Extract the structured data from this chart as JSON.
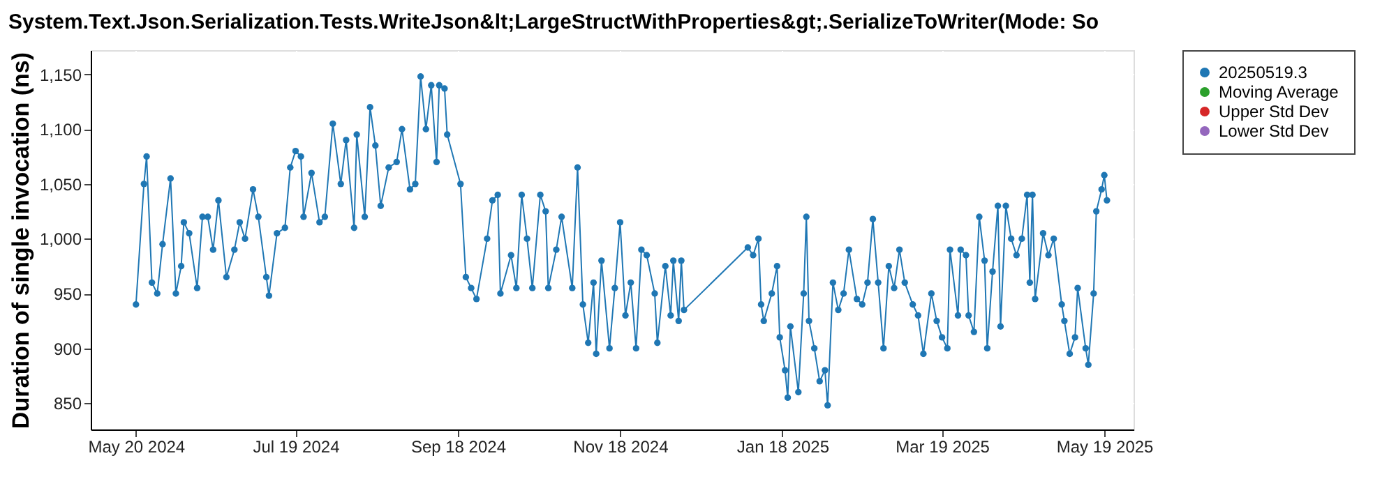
{
  "chart_data": {
    "type": "line",
    "title": "System.Text.Json.Serialization.Tests.WriteJson&lt;LargeStructWithProperties&gt;.SerializeToWriter(Mode: So",
    "ylabel": "Duration of single invocation (ns)",
    "xlim": [
      "2024-05-03",
      "2025-05-30"
    ],
    "xticks": [
      {
        "value": "2024-05-20",
        "label": "May 20 2024"
      },
      {
        "value": "2024-07-19",
        "label": "Jul 19 2024"
      },
      {
        "value": "2024-09-18",
        "label": "Sep 18 2024"
      },
      {
        "value": "2024-11-18",
        "label": "Nov 18 2024"
      },
      {
        "value": "2025-01-18",
        "label": "Jan 18 2025"
      },
      {
        "value": "2025-03-19",
        "label": "Mar 19 2025"
      },
      {
        "value": "2025-05-19",
        "label": "May 19 2025"
      }
    ],
    "ylim": [
      826,
      1172
    ],
    "yticks": [
      850,
      900,
      950,
      {
        "value": 1000,
        "label": "1,000"
      },
      {
        "value": 1050,
        "label": "1,050"
      },
      {
        "value": 1100,
        "label": "1,100"
      },
      {
        "value": 1150,
        "label": "1,150"
      }
    ],
    "grid": true,
    "legend": "right",
    "marker": "circle",
    "line_style": "solid",
    "x": [
      "2024-05-20",
      "2024-05-23",
      "2024-05-24",
      "2024-05-26",
      "2024-05-28",
      "2024-05-30",
      "2024-06-02",
      "2024-06-04",
      "2024-06-06",
      "2024-06-07",
      "2024-06-09",
      "2024-06-12",
      "2024-06-14",
      "2024-06-16",
      "2024-06-18",
      "2024-06-20",
      "2024-06-23",
      "2024-06-26",
      "2024-06-28",
      "2024-06-30",
      "2024-07-03",
      "2024-07-05",
      "2024-07-08",
      "2024-07-09",
      "2024-07-12",
      "2024-07-15",
      "2024-07-17",
      "2024-07-19",
      "2024-07-21",
      "2024-07-22",
      "2024-07-25",
      "2024-07-28",
      "2024-07-30",
      "2024-08-02",
      "2024-08-05",
      "2024-08-07",
      "2024-08-10",
      "2024-08-11",
      "2024-08-14",
      "2024-08-16",
      "2024-08-18",
      "2024-08-20",
      "2024-08-23",
      "2024-08-26",
      "2024-08-28",
      "2024-08-31",
      "2024-09-02",
      "2024-09-04",
      "2024-09-06",
      "2024-09-08",
      "2024-09-10",
      "2024-09-11",
      "2024-09-13",
      "2024-09-14",
      "2024-09-19",
      "2024-09-21",
      "2024-09-23",
      "2024-09-25",
      "2024-09-29",
      "2024-10-01",
      "2024-10-03",
      "2024-10-04",
      "2024-10-08",
      "2024-10-10",
      "2024-10-12",
      "2024-10-14",
      "2024-10-16",
      "2024-10-19",
      "2024-10-21",
      "2024-10-22",
      "2024-10-25",
      "2024-10-27",
      "2024-10-31",
      "2024-11-02",
      "2024-11-04",
      "2024-11-06",
      "2024-11-08",
      "2024-11-09",
      "2024-11-11",
      "2024-11-14",
      "2024-11-16",
      "2024-11-18",
      "2024-11-20",
      "2024-11-22",
      "2024-11-24",
      "2024-11-26",
      "2024-11-28",
      "2024-12-01",
      "2024-12-02",
      "2024-12-05",
      "2024-12-07",
      "2024-12-08",
      "2024-12-10",
      "2024-12-11",
      "2024-12-12",
      "2025-01-05",
      "2025-01-07",
      "2025-01-09",
      "2025-01-10",
      "2025-01-11",
      "2025-01-14",
      "2025-01-16",
      "2025-01-17",
      "2025-01-19",
      "2025-01-20",
      "2025-01-21",
      "2025-01-24",
      "2025-01-26",
      "2025-01-27",
      "2025-01-28",
      "2025-01-30",
      "2025-02-01",
      "2025-02-03",
      "2025-02-04",
      "2025-02-06",
      "2025-02-08",
      "2025-02-10",
      "2025-02-12",
      "2025-02-15",
      "2025-02-17",
      "2025-02-19",
      "2025-02-21",
      "2025-02-23",
      "2025-02-25",
      "2025-02-27",
      "2025-03-01",
      "2025-03-03",
      "2025-03-05",
      "2025-03-08",
      "2025-03-10",
      "2025-03-12",
      "2025-03-15",
      "2025-03-17",
      "2025-03-19",
      "2025-03-21",
      "2025-03-22",
      "2025-03-25",
      "2025-03-26",
      "2025-03-28",
      "2025-03-29",
      "2025-03-31",
      "2025-04-02",
      "2025-04-04",
      "2025-04-05",
      "2025-04-07",
      "2025-04-09",
      "2025-04-10",
      "2025-04-12",
      "2025-04-14",
      "2025-04-16",
      "2025-04-18",
      "2025-04-20",
      "2025-04-21",
      "2025-04-22",
      "2025-04-23",
      "2025-04-26",
      "2025-04-28",
      "2025-04-30",
      "2025-05-03",
      "2025-05-04",
      "2025-05-06",
      "2025-05-08",
      "2025-05-09",
      "2025-05-12",
      "2025-05-13",
      "2025-05-15",
      "2025-05-16",
      "2025-05-18",
      "2025-05-19",
      "2025-05-20"
    ],
    "series": [
      {
        "name": "20250519.3",
        "color": "#1f77b4",
        "values": [
          940,
          1050,
          1075,
          960,
          950,
          995,
          1055,
          950,
          975,
          1015,
          1005,
          955,
          1020,
          1020,
          990,
          1035,
          965,
          990,
          1015,
          1000,
          1045,
          1020,
          965,
          948,
          1005,
          1010,
          1065,
          1080,
          1075,
          1020,
          1060,
          1015,
          1020,
          1105,
          1050,
          1090,
          1010,
          1095,
          1020,
          1120,
          1085,
          1030,
          1065,
          1070,
          1100,
          1045,
          1050,
          1148,
          1100,
          1140,
          1070,
          1140,
          1137,
          1095,
          1050,
          965,
          955,
          945,
          1000,
          1035,
          1040,
          950,
          985,
          955,
          1040,
          1000,
          955,
          1040,
          1025,
          955,
          990,
          1020,
          955,
          1065,
          940,
          905,
          960,
          895,
          980,
          900,
          955,
          1015,
          930,
          960,
          900,
          990,
          985,
          950,
          905,
          975,
          930,
          980,
          925,
          980,
          935,
          992,
          985,
          1000,
          940,
          925,
          950,
          975,
          910,
          880,
          855,
          920,
          860,
          950,
          1020,
          925,
          900,
          870,
          880,
          848,
          960,
          935,
          950,
          990,
          945,
          940,
          960,
          1018,
          960,
          900,
          975,
          955,
          990,
          960,
          940,
          930,
          895,
          950,
          925,
          910,
          900,
          990,
          930,
          990,
          985,
          930,
          915,
          1020,
          980,
          900,
          970,
          1030,
          920,
          1030,
          1000,
          985,
          1000,
          1040,
          960,
          1040,
          945,
          1005,
          985,
          1000,
          940,
          925,
          895,
          910,
          955,
          900,
          885,
          950,
          1025,
          1045,
          1058,
          1035
        ]
      },
      {
        "name": "Moving Average",
        "color": "#2ca02c",
        "values": [
          null,
          null,
          null,
          null,
          null,
          null,
          null,
          null,
          null,
          null,
          null,
          null,
          null,
          null,
          null,
          null,
          null,
          null,
          null,
          null,
          null,
          null,
          null,
          null,
          null,
          null,
          null,
          null,
          null,
          null,
          null,
          null,
          null,
          null,
          null,
          null,
          null,
          null,
          null,
          null,
          null,
          null,
          null,
          null,
          null,
          null,
          null,
          null,
          null,
          null,
          null,
          null,
          null,
          null,
          null,
          null,
          null,
          null,
          null,
          null,
          null,
          null,
          null,
          null,
          null,
          null,
          null,
          null,
          null,
          null,
          null,
          null,
          null,
          null,
          null,
          null,
          null,
          null,
          null,
          null,
          null,
          null,
          null,
          null,
          null,
          null,
          null,
          null,
          null,
          null,
          null,
          null,
          null,
          null,
          null,
          null,
          null,
          null,
          null,
          null,
          null,
          null,
          null,
          null,
          null,
          null,
          null,
          null,
          null,
          null,
          null,
          null,
          null,
          null,
          null,
          null,
          null,
          null,
          null,
          null,
          null,
          null,
          null,
          null,
          null,
          null,
          null,
          null,
          null,
          null,
          null,
          null,
          null,
          null,
          null,
          null,
          null,
          null,
          null,
          null,
          null,
          null,
          null,
          null,
          null,
          null,
          null,
          null,
          null,
          null,
          null,
          null,
          null,
          null,
          null,
          null,
          null,
          null,
          null,
          null,
          null,
          null,
          null,
          null,
          null,
          null,
          null,
          null,
          null,
          null
        ]
      },
      {
        "name": "Upper Std Dev",
        "color": "#d62728",
        "values": [
          null,
          null,
          null,
          null,
          null,
          null,
          null,
          null,
          null,
          null,
          null,
          null,
          null,
          null,
          null,
          null,
          null,
          null,
          null,
          null,
          null,
          null,
          null,
          null,
          null,
          null,
          null,
          null,
          null,
          null,
          null,
          null,
          null,
          null,
          null,
          null,
          null,
          null,
          null,
          null,
          null,
          null,
          null,
          null,
          null,
          null,
          null,
          null,
          null,
          null,
          null,
          null,
          null,
          null,
          null,
          null,
          null,
          null,
          null,
          null,
          null,
          null,
          null,
          null,
          null,
          null,
          null,
          null,
          null,
          null,
          null,
          null,
          null,
          null,
          null,
          null,
          null,
          null,
          null,
          null,
          null,
          null,
          null,
          null,
          null,
          null,
          null,
          null,
          null,
          null,
          null,
          null,
          null,
          null,
          null,
          null,
          null,
          null,
          null,
          null,
          null,
          null,
          null,
          null,
          null,
          null,
          null,
          null,
          null,
          null,
          null,
          null,
          null,
          null,
          null,
          null,
          null,
          null,
          null,
          null,
          null,
          null,
          null,
          null,
          null,
          null,
          null,
          null,
          null,
          null,
          null,
          null,
          null,
          null,
          null,
          null,
          null,
          null,
          null,
          null,
          null,
          null,
          null,
          null,
          null,
          null,
          null,
          null,
          null,
          null,
          null,
          null,
          null,
          null,
          null,
          null,
          null,
          null,
          null,
          null,
          null,
          null,
          null,
          null,
          null,
          null,
          null,
          null,
          null,
          null
        ]
      },
      {
        "name": "Lower Std Dev",
        "color": "#9467bd",
        "values": [
          null,
          null,
          null,
          null,
          null,
          null,
          null,
          null,
          null,
          null,
          null,
          null,
          null,
          null,
          null,
          null,
          null,
          null,
          null,
          null,
          null,
          null,
          null,
          null,
          null,
          null,
          null,
          null,
          null,
          null,
          null,
          null,
          null,
          null,
          null,
          null,
          null,
          null,
          null,
          null,
          null,
          null,
          null,
          null,
          null,
          null,
          null,
          null,
          null,
          null,
          null,
          null,
          null,
          null,
          null,
          null,
          null,
          null,
          null,
          null,
          null,
          null,
          null,
          null,
          null,
          null,
          null,
          null,
          null,
          null,
          null,
          null,
          null,
          null,
          null,
          null,
          null,
          null,
          null,
          null,
          null,
          null,
          null,
          null,
          null,
          null,
          null,
          null,
          null,
          null,
          null,
          null,
          null,
          null,
          null,
          null,
          null,
          null,
          null,
          null,
          null,
          null,
          null,
          null,
          null,
          null,
          null,
          null,
          null,
          null,
          null,
          null,
          null,
          null,
          null,
          null,
          null,
          null,
          null,
          null,
          null,
          null,
          null,
          null,
          null,
          null,
          null,
          null,
          null,
          null,
          null,
          null,
          null,
          null,
          null,
          null,
          null,
          null,
          null,
          null,
          null,
          null,
          null,
          null,
          null,
          null,
          null,
          null,
          null,
          null,
          null,
          null,
          null,
          null,
          null,
          null,
          null,
          null,
          null,
          null,
          null,
          null,
          null,
          null,
          null,
          null,
          null,
          null,
          null,
          null
        ]
      }
    ]
  }
}
